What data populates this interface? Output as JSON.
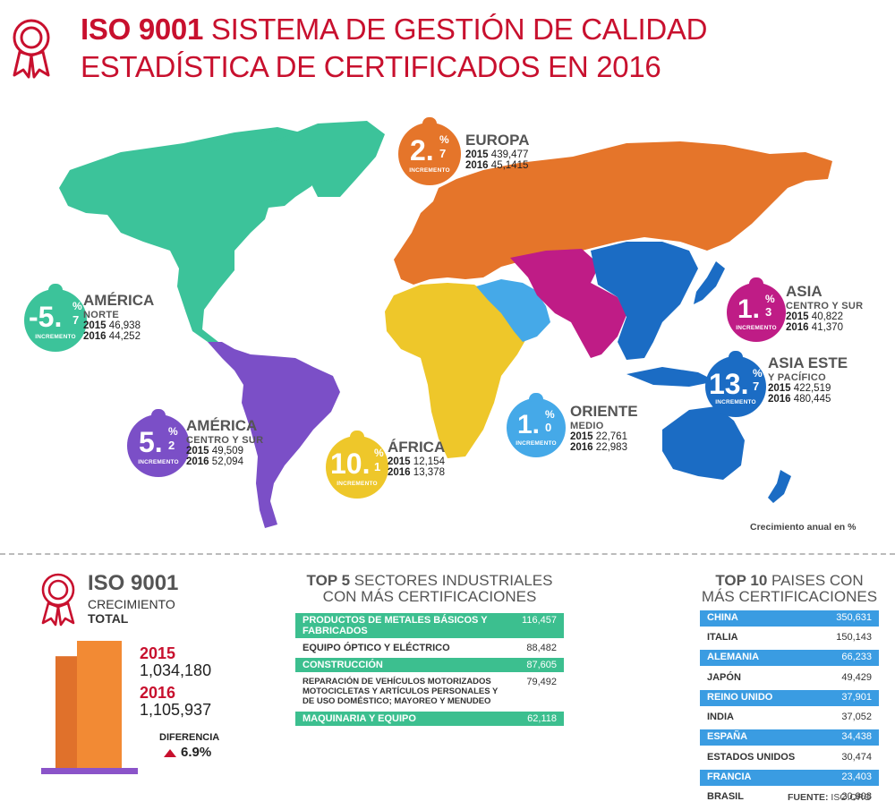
{
  "header": {
    "title_bold": "ISO 9001",
    "title_rest": " SISTEMA DE GESTIÓN DE CALIDAD",
    "subtitle": "ESTADÍSTICA DE CERTIFICADOS EN 2016"
  },
  "colors": {
    "brand_red": "#c8102e",
    "north_america": "#3cc39a",
    "south_america": "#7b4fc7",
    "europe": "#e5752a",
    "africa": "#eec72a",
    "middle_east": "#45a9e8",
    "central_south_asia": "#bf1c86",
    "east_asia_pacific": "#1b6cc4"
  },
  "map_note": "Crecimiento anual en %",
  "regions": [
    {
      "id": "europa",
      "name": "EUROPA",
      "sub": "",
      "big": "2.",
      "small": "7",
      "y2015_label": "2015",
      "y2015": "439,477",
      "y2016_label": "2016",
      "y2016": "45,1415",
      "color": "#e5752a"
    },
    {
      "id": "america-norte",
      "name": "AMÉRICA",
      "sub": "NORTE",
      "big": "-5.",
      "small": "7",
      "y2015_label": "2015",
      "y2015": "46,938",
      "y2016_label": "2016",
      "y2016": "44,252",
      "color": "#3cc39a"
    },
    {
      "id": "america-centro-sur",
      "name": "AMÉRICA",
      "sub": "CENTRO Y SUR",
      "big": "5.",
      "small": "2",
      "y2015_label": "2015",
      "y2015": "49,509",
      "y2016_label": "2016",
      "y2016": "52,094",
      "color": "#7b4fc7"
    },
    {
      "id": "africa",
      "name": "ÁFRICA",
      "sub": "",
      "big": "10.",
      "small": "1",
      "y2015_label": "2015",
      "y2015": "12,154",
      "y2016_label": "2016",
      "y2016": "13,378",
      "color": "#eec72a"
    },
    {
      "id": "oriente-medio",
      "name": "ORIENTE",
      "sub": "MEDIO",
      "big": "1.",
      "small": "0",
      "y2015_label": "2015",
      "y2015": "22,761",
      "y2016_label": "2016",
      "y2016": "22,983",
      "color": "#45a9e8"
    },
    {
      "id": "asia-centro-sur",
      "name": "ASIA",
      "sub": "CENTRO Y SUR",
      "big": "1.",
      "small": "3",
      "y2015_label": "2015",
      "y2015": "40,822",
      "y2016_label": "2016",
      "y2016": "41,370",
      "color": "#bf1c86"
    },
    {
      "id": "asia-este",
      "name": "ASIA ESTE",
      "sub": "Y PACÍFICO",
      "big": "13.",
      "small": "7",
      "y2015_label": "2015",
      "y2015": "422,519",
      "y2016_label": "2016",
      "y2016": "480,445",
      "color": "#1b6cc4"
    }
  ],
  "badge_pct": "%",
  "badge_inc": "INCREMENTO",
  "growth": {
    "title": "ISO 9001",
    "sub1": "CRECIMIENTO",
    "sub2": "TOTAL",
    "y2015_label": "2015",
    "y2015_value": "1,034,180",
    "y2016_label": "2016",
    "y2016_value": "1,105,937",
    "diff_label": "DIFERENCIA",
    "diff_value": "6.9%"
  },
  "sectors": {
    "title_bold": "TOP 5",
    "title_rest": " SECTORES INDUSTRIALES",
    "title_line2": "CON MÁS CERTIFICACIONES",
    "rows": [
      {
        "label": "PRODUCTOS DE METALES BÁSICOS Y FABRICADOS",
        "value": "116,457"
      },
      {
        "label": "EQUIPO ÓPTICO Y ELÉCTRICO",
        "value": "88,482"
      },
      {
        "label": "CONSTRUCCIÓN",
        "value": "87,605"
      },
      {
        "label": "REPARACIÓN DE VEHÍCULOS MOTORIZADOS MOTOCICLETAS Y ARTÍCULOS PERSONALES Y DE USO DOMÉSTICO; MAYOREO Y MENUDEO",
        "value": "79,492"
      },
      {
        "label": "MAQUINARIA Y EQUIPO",
        "value": "62,118"
      }
    ]
  },
  "countries": {
    "title_bold": "TOP 10",
    "title_rest": " PAISES CON",
    "title_line2": "MÁS CERTIFICACIONES",
    "rows": [
      {
        "label": "CHINA",
        "value": "350,631"
      },
      {
        "label": "ITALIA",
        "value": "150,143"
      },
      {
        "label": "ALEMANIA",
        "value": "66,233"
      },
      {
        "label": "JAPÓN",
        "value": "49,429"
      },
      {
        "label": "REINO UNIDO",
        "value": "37,901"
      },
      {
        "label": "INDIA",
        "value": "37,052"
      },
      {
        "label": "ESPAÑA",
        "value": "34,438"
      },
      {
        "label": "ESTADOS UNIDOS",
        "value": "30,474"
      },
      {
        "label": "FRANCIA",
        "value": "23,403"
      },
      {
        "label": "BRASIL",
        "value": "20,908"
      }
    ]
  },
  "source": {
    "label": "FUENTE:",
    "value": " ISO.ORG"
  },
  "chart_data": [
    {
      "type": "table",
      "title": "TOP 5 SECTORES INDUSTRIALES CON MÁS CERTIFICACIONES",
      "categories": [
        "PRODUCTOS DE METALES BÁSICOS Y FABRICADOS",
        "EQUIPO ÓPTICO Y ELÉCTRICO",
        "CONSTRUCCIÓN",
        "REPARACIÓN DE VEHÍCULOS MOTORIZADOS MOTOCICLETAS Y ARTÍCULOS PERSONALES Y DE USO DOMÉSTICO; MAYOREO Y MENUDEO",
        "MAQUINARIA Y EQUIPO"
      ],
      "values": [
        116457,
        88482,
        87605,
        79492,
        62118
      ]
    },
    {
      "type": "table",
      "title": "TOP 10 PAISES CON MÁS CERTIFICACIONES",
      "categories": [
        "CHINA",
        "ITALIA",
        "ALEMANIA",
        "JAPÓN",
        "REINO UNIDO",
        "INDIA",
        "ESPAÑA",
        "ESTADOS UNIDOS",
        "FRANCIA",
        "BRASIL"
      ],
      "values": [
        350631,
        150143,
        66233,
        49429,
        37901,
        37052,
        34438,
        30474,
        23403,
        20908
      ]
    },
    {
      "type": "bar",
      "title": "ISO 9001 CRECIMIENTO TOTAL",
      "categories": [
        "2015",
        "2016"
      ],
      "values": [
        1034180,
        1105937
      ]
    },
    {
      "type": "table",
      "title": "Crecimiento anual en %",
      "categories": [
        "EUROPA",
        "AMÉRICA NORTE",
        "AMÉRICA CENTRO Y SUR",
        "ÁFRICA",
        "ORIENTE MEDIO",
        "ASIA CENTRO Y SUR",
        "ASIA ESTE Y PACÍFICO"
      ],
      "values": [
        2.7,
        -5.7,
        5.2,
        10.1,
        1.0,
        1.3,
        13.7
      ]
    }
  ]
}
